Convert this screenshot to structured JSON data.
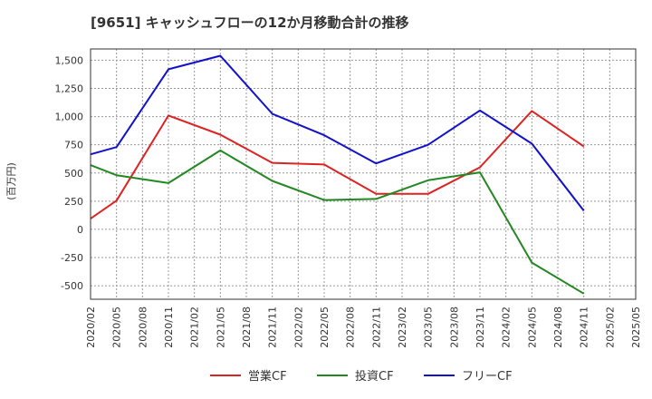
{
  "chart_data": {
    "type": "line",
    "title": "[9651]  キャッシュフローの12か月移動合計の推移",
    "ylabel": "(百万円)",
    "xlabel": "",
    "ylim": [
      -620,
      1600
    ],
    "yticks": [
      1500,
      1250,
      1000,
      750,
      500,
      250,
      0,
      -250,
      -500
    ],
    "ytick_labels": [
      "1,500",
      "1,250",
      "1,000",
      "750",
      "500",
      "250",
      "0",
      "-250",
      "-500"
    ],
    "categories": [
      "2020/02",
      "2020/05",
      "2020/08",
      "2020/11",
      "2021/02",
      "2021/05",
      "2021/08",
      "2021/11",
      "2022/02",
      "2022/05",
      "2022/08",
      "2022/11",
      "2023/02",
      "2023/05",
      "2023/08",
      "2023/11",
      "2024/02",
      "2024/05",
      "2024/08",
      "2024/11",
      "2025/02",
      "2025/05"
    ],
    "grid": true,
    "legend_position": "bottom",
    "series": [
      {
        "name": "営業CF",
        "color": "#dd2222",
        "values": [
          95,
          255,
          null,
          1010,
          null,
          840,
          null,
          590,
          null,
          575,
          null,
          315,
          null,
          315,
          null,
          550,
          null,
          1050,
          null,
          735,
          null,
          null
        ]
      },
      {
        "name": "投資CF",
        "color": "#228822",
        "values": [
          570,
          480,
          null,
          410,
          null,
          700,
          null,
          430,
          null,
          260,
          null,
          270,
          null,
          435,
          null,
          505,
          null,
          -295,
          null,
          -570,
          null,
          null
        ]
      },
      {
        "name": "フリーCF",
        "color": "#1111cc",
        "values": [
          665,
          730,
          null,
          1420,
          null,
          1540,
          null,
          1025,
          null,
          835,
          null,
          585,
          null,
          750,
          null,
          1055,
          null,
          760,
          null,
          165,
          null,
          null
        ]
      }
    ]
  }
}
